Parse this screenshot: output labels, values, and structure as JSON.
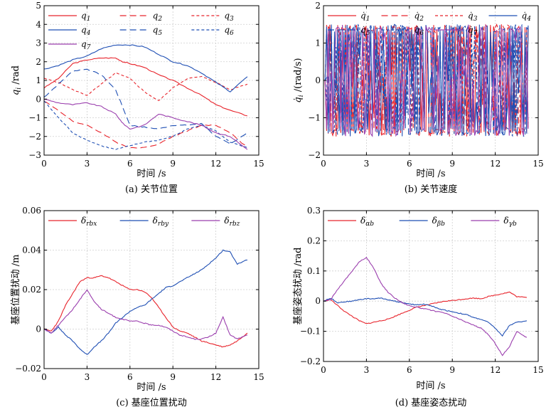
{
  "chart_data": [
    {
      "type": "line",
      "caption": "(a) 关节位置",
      "xlabel": "时间 /s",
      "ylabel": "q_i /rad",
      "xlim": [
        0,
        15
      ],
      "ylim": [
        -3,
        5
      ],
      "xticks": [
        0,
        3,
        6,
        9,
        12,
        15
      ],
      "yticks": [
        -3,
        -2,
        -1,
        0,
        1,
        2,
        3,
        4,
        5
      ],
      "grid": true,
      "legend": "top, 3 columns",
      "series": [
        {
          "name": "q1",
          "color": "#e8242c",
          "dash": "solid",
          "x": [
            0,
            1,
            2,
            3,
            4,
            5,
            5.5,
            6,
            7,
            8,
            9,
            10,
            11,
            12,
            13,
            14.2
          ],
          "y": [
            0.6,
            1.1,
            1.9,
            2.1,
            2.2,
            2.2,
            2.0,
            1.9,
            1.7,
            1.3,
            1.0,
            0.6,
            0.2,
            -0.3,
            -0.6,
            -0.9
          ]
        },
        {
          "name": "q2",
          "color": "#e8242c",
          "dash": "long",
          "x": [
            0,
            1,
            2,
            3,
            4,
            5,
            6,
            7,
            8,
            9,
            10,
            11,
            12,
            13,
            14.2
          ],
          "y": [
            -0.1,
            -0.6,
            -1.2,
            -1.4,
            -1.8,
            -2.3,
            -2.6,
            -2.6,
            -2.4,
            -2.0,
            -1.7,
            -1.4,
            -1.4,
            -1.8,
            -2.6
          ]
        },
        {
          "name": "q3",
          "color": "#e8242c",
          "dash": "short",
          "x": [
            0,
            1,
            2,
            3,
            4,
            5,
            6,
            7,
            8,
            9,
            10,
            11,
            12,
            13,
            14.2
          ],
          "y": [
            1.1,
            0.9,
            0.5,
            0.2,
            0.8,
            1.4,
            1.1,
            0.4,
            -0.1,
            0.6,
            1.1,
            1.2,
            0.9,
            0.5,
            0.8
          ]
        },
        {
          "name": "q4",
          "color": "#1f4fb4",
          "dash": "solid",
          "x": [
            0,
            1,
            2,
            3,
            4,
            5,
            6,
            7,
            8,
            9,
            10,
            11,
            12,
            13,
            14.2
          ],
          "y": [
            1.6,
            1.8,
            2.1,
            2.3,
            2.7,
            2.9,
            2.9,
            2.8,
            2.4,
            2.0,
            1.8,
            1.4,
            0.9,
            0.4,
            1.2
          ]
        },
        {
          "name": "q5",
          "color": "#1f4fb4",
          "dash": "long",
          "x": [
            0,
            1,
            2,
            3,
            4,
            5,
            6,
            7,
            8,
            9,
            10,
            11,
            12,
            13,
            14.2
          ],
          "y": [
            0.1,
            0.8,
            1.5,
            1.6,
            1.3,
            0.5,
            -1.4,
            -1.5,
            -1.6,
            -1.4,
            -1.4,
            -1.3,
            -2.0,
            -2.4,
            -1.8
          ]
        },
        {
          "name": "q6",
          "color": "#1f4fb4",
          "dash": "short",
          "x": [
            0,
            1,
            2,
            3,
            4,
            5,
            6,
            7,
            8,
            9,
            10,
            11,
            12,
            13,
            14.2
          ],
          "y": [
            -0.1,
            -1.0,
            -1.8,
            -2.2,
            -2.5,
            -2.7,
            -2.5,
            -2.3,
            -2.2,
            -2.0,
            -1.6,
            -1.4,
            -1.7,
            -2.3,
            -2.6
          ]
        },
        {
          "name": "q7",
          "color": "#9b3fae",
          "dash": "solid",
          "x": [
            0,
            1,
            2,
            3,
            4,
            5,
            5.5,
            6,
            7,
            8,
            9,
            10,
            11,
            12,
            13,
            14.2
          ],
          "y": [
            0.0,
            -0.2,
            -0.3,
            -0.2,
            -0.4,
            -0.8,
            -1.3,
            -1.6,
            -1.4,
            -0.8,
            -1.0,
            -1.2,
            -1.4,
            -1.8,
            -2.0,
            -2.7
          ]
        }
      ]
    },
    {
      "type": "line",
      "caption": "(b) 关节速度",
      "xlabel": "时间 /s",
      "ylabel": "q̇_i /(rad/s)",
      "xlim": [
        0,
        15
      ],
      "ylim": [
        -2,
        2
      ],
      "xticks": [
        0,
        3,
        6,
        9,
        12,
        15
      ],
      "yticks": [
        -2,
        -1,
        0,
        1,
        2
      ],
      "grid": true,
      "legend": "top, 4 columns",
      "series": [
        {
          "name": "q̇1",
          "color": "#e8242c",
          "dash": "solid",
          "amp": 1.5,
          "seed": 1
        },
        {
          "name": "q̇2",
          "color": "#e8242c",
          "dash": "long",
          "amp": 1.5,
          "seed": 2
        },
        {
          "name": "q̇3",
          "color": "#e8242c",
          "dash": "short",
          "amp": 1.5,
          "seed": 3
        },
        {
          "name": "q̇4",
          "color": "#1f4fb4",
          "dash": "solid",
          "amp": 1.5,
          "seed": 4
        },
        {
          "name": "q̇5",
          "color": "#1f4fb4",
          "dash": "long",
          "amp": 1.5,
          "seed": 5
        },
        {
          "name": "q̇6",
          "color": "#1f4fb4",
          "dash": "short",
          "amp": 1.5,
          "seed": 6
        },
        {
          "name": "q̇7",
          "color": "#9b3fae",
          "dash": "solid",
          "amp": 1.5,
          "seed": 7
        }
      ],
      "x_range": [
        0,
        14.3
      ]
    },
    {
      "type": "line",
      "caption": "(c) 基座位置扰动",
      "xlabel": "时间 /s",
      "ylabel": "基座位置扰动 /m",
      "xlim": [
        0,
        15
      ],
      "ylim": [
        -0.02,
        0.06
      ],
      "xticks": [
        0,
        3,
        6,
        9,
        12,
        15
      ],
      "yticks": [
        -0.02,
        0,
        0.02,
        0.04,
        0.06
      ],
      "ytick_labels": [
        "−0.02",
        "0",
        "0.02",
        "0.04",
        "0.06"
      ],
      "grid": true,
      "legend": "top, 3 columns",
      "series": [
        {
          "name": "δ_rbx",
          "color": "#e8242c",
          "dash": "solid",
          "x": [
            0,
            0.5,
            1,
            1.5,
            2,
            2.5,
            3,
            3.5,
            4,
            4.5,
            5,
            5.5,
            6,
            6.5,
            7,
            7.5,
            8,
            8.5,
            9,
            9.5,
            10,
            10.5,
            11,
            11.5,
            12,
            12.5,
            13,
            13.5,
            14.2
          ],
          "y": [
            0,
            -0.001,
            0.004,
            0.012,
            0.018,
            0.024,
            0.026,
            0.026,
            0.027,
            0.026,
            0.024,
            0.022,
            0.02,
            0.02,
            0.019,
            0.016,
            0.011,
            0.006,
            0.001,
            -0.001,
            -0.002,
            -0.004,
            -0.006,
            -0.007,
            -0.008,
            -0.009,
            -0.008,
            -0.006,
            -0.002
          ]
        },
        {
          "name": "δ_rby",
          "color": "#1f4fb4",
          "dash": "solid",
          "x": [
            0,
            0.5,
            1,
            1.5,
            2,
            2.5,
            3,
            3.5,
            4,
            4.5,
            5,
            5.5,
            6,
            6.5,
            7,
            7.5,
            8,
            8.5,
            9,
            9.5,
            10,
            10.5,
            11,
            11.5,
            12,
            12.5,
            13,
            13.5,
            14.2
          ],
          "y": [
            0,
            -0.002,
            0.001,
            -0.003,
            -0.006,
            -0.01,
            -0.013,
            -0.009,
            -0.006,
            -0.002,
            0.003,
            0.006,
            0.009,
            0.011,
            0.012,
            0.015,
            0.018,
            0.021,
            0.022,
            0.024,
            0.026,
            0.028,
            0.03,
            0.033,
            0.036,
            0.04,
            0.039,
            0.033,
            0.035
          ]
        },
        {
          "name": "δ_rbz",
          "color": "#9b3fae",
          "dash": "solid",
          "x": [
            0,
            0.5,
            1,
            1.5,
            2,
            2.5,
            3,
            3.5,
            4,
            4.5,
            5,
            5.5,
            6,
            6.5,
            7,
            7.5,
            8,
            8.5,
            9,
            9.5,
            10,
            10.5,
            11,
            11.5,
            12,
            12.5,
            13,
            13.5,
            14.2
          ],
          "y": [
            0,
            -0.002,
            0.002,
            0.006,
            0.01,
            0.015,
            0.02,
            0.014,
            0.01,
            0.008,
            0.006,
            0.005,
            0.004,
            0.004,
            0.003,
            0.002,
            0.002,
            0.001,
            -0.001,
            -0.003,
            -0.004,
            -0.005,
            -0.005,
            -0.004,
            -0.002,
            0.006,
            -0.003,
            -0.005,
            -0.003
          ]
        }
      ]
    },
    {
      "type": "line",
      "caption": "(d) 基座姿态扰动",
      "xlabel": "时间 /s",
      "ylabel": "基座姿态扰动 /rad",
      "xlim": [
        0,
        15
      ],
      "ylim": [
        -0.2,
        0.3
      ],
      "xticks": [
        0,
        3,
        6,
        9,
        12,
        15
      ],
      "yticks": [
        -0.2,
        -0.1,
        0,
        0.1,
        0.2,
        0.3
      ],
      "ytick_labels": [
        "−0.2",
        "−0.1",
        "0",
        "0.1",
        "0.2",
        "0.3"
      ],
      "grid": true,
      "legend": "top, 3 columns",
      "series": [
        {
          "name": "δ_αb",
          "color": "#e8242c",
          "dash": "solid",
          "x": [
            0,
            0.5,
            1,
            1.5,
            2,
            2.5,
            3,
            3.5,
            4,
            4.5,
            5,
            5.5,
            6,
            6.5,
            7,
            7.5,
            8,
            8.5,
            9,
            9.5,
            10,
            10.5,
            11,
            11.5,
            12,
            12.5,
            13,
            13.5,
            14.2
          ],
          "y": [
            0,
            0.005,
            -0.015,
            -0.035,
            -0.05,
            -0.065,
            -0.075,
            -0.07,
            -0.065,
            -0.06,
            -0.05,
            -0.04,
            -0.03,
            -0.02,
            -0.015,
            -0.01,
            -0.005,
            0,
            0.002,
            0.005,
            0.008,
            0.01,
            0.008,
            0.015,
            0.02,
            0.025,
            0.03,
            0.015,
            0.012
          ]
        },
        {
          "name": "δ_βb",
          "color": "#1f4fb4",
          "dash": "solid",
          "x": [
            0,
            0.5,
            1,
            1.5,
            2,
            2.5,
            3,
            3.5,
            4,
            4.5,
            5,
            5.5,
            6,
            6.5,
            7,
            7.5,
            8,
            8.5,
            9,
            9.5,
            10,
            10.5,
            11,
            11.5,
            12,
            12.5,
            13,
            13.5,
            14.2
          ],
          "y": [
            0,
            0.01,
            -0.005,
            -0.002,
            0,
            0.005,
            0.008,
            0.008,
            0.01,
            0.005,
            0,
            -0.005,
            -0.01,
            -0.012,
            -0.01,
            -0.015,
            -0.025,
            -0.03,
            -0.035,
            -0.04,
            -0.045,
            -0.055,
            -0.06,
            -0.07,
            -0.09,
            -0.115,
            -0.08,
            -0.07,
            -0.065
          ]
        },
        {
          "name": "δ_γb",
          "color": "#9b3fae",
          "dash": "solid",
          "x": [
            0,
            0.5,
            1,
            1.5,
            2,
            2.5,
            3,
            3.5,
            4,
            4.5,
            5,
            5.5,
            6,
            6.5,
            7,
            7.5,
            8,
            8.5,
            9,
            9.5,
            10,
            10.5,
            11,
            11.5,
            12,
            12.5,
            13,
            13.5,
            14.2
          ],
          "y": [
            0,
            0.005,
            0.04,
            0.07,
            0.1,
            0.13,
            0.145,
            0.11,
            0.06,
            0.03,
            0.01,
            -0.005,
            -0.015,
            -0.02,
            -0.025,
            -0.03,
            -0.035,
            -0.04,
            -0.05,
            -0.06,
            -0.07,
            -0.08,
            -0.09,
            -0.11,
            -0.14,
            -0.18,
            -0.15,
            -0.1,
            -0.12
          ]
        }
      ]
    }
  ]
}
